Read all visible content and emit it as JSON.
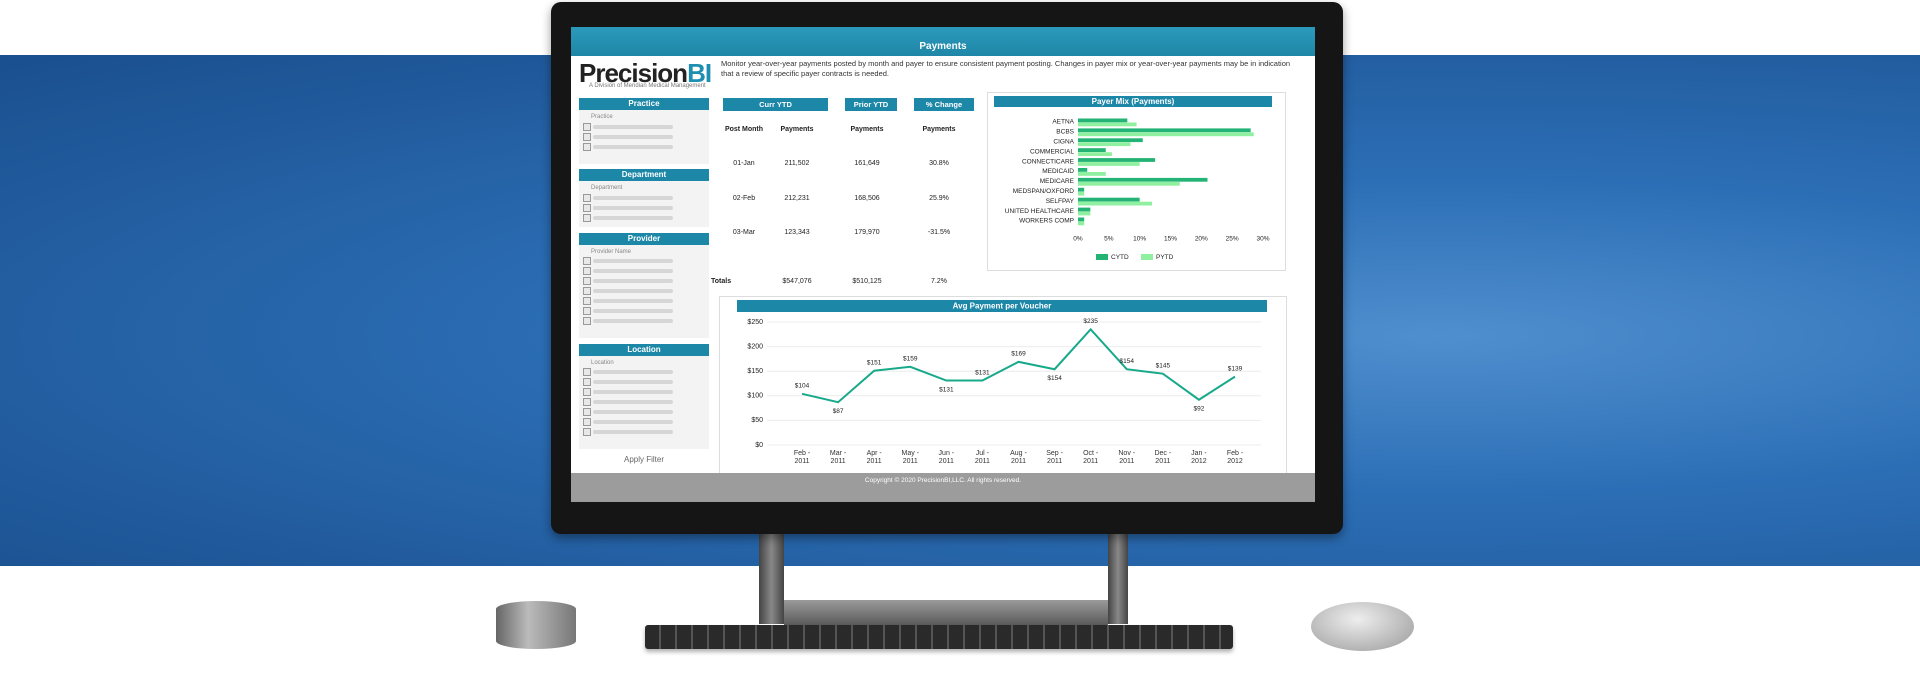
{
  "header": {
    "title": "Payments"
  },
  "logo": {
    "name_main": "Precision",
    "name_accent": "BI",
    "tagline": "A Division of Meridian Medical Management"
  },
  "description": "Monitor year-over-year payments posted by month and payer to ensure consistent payment posting.  Changes in payer mix or year-over-year payments may be in indication that a review of specific payer contracts is needed.",
  "filters": [
    {
      "title": "Practice",
      "placeholder": "Practice"
    },
    {
      "title": "Department",
      "placeholder": "Department"
    },
    {
      "title": "Provider",
      "placeholder": "Provider Name"
    },
    {
      "title": "Location",
      "placeholder": "Location"
    }
  ],
  "apply_button": "Apply Filter",
  "table": {
    "group_headers": [
      "Curr YTD",
      "Prior YTD",
      "% Change"
    ],
    "columns": [
      "Post Month",
      "Payments",
      "Payments",
      "Payments"
    ],
    "rows": [
      [
        "01-Jan",
        "211,502",
        "161,649",
        "30.8%"
      ],
      [
        "02-Feb",
        "212,231",
        "168,506",
        "25.9%"
      ],
      [
        "03-Mar",
        "123,343",
        "179,970",
        "-31.5%"
      ]
    ],
    "totals": [
      "Totals",
      "$547,076",
      "$510,125",
      "7.2%"
    ]
  },
  "footer": "Copyright © 2020 PrecisionBI,LLC.  All rights reserved.",
  "chart_data": [
    {
      "type": "hbar",
      "title": "Payer Mix (Payments)",
      "categories": [
        "AETNA",
        "BCBS",
        "CIGNA",
        "COMMERCIAL",
        "CONNECTICARE",
        "MEDICAID",
        "MEDICARE",
        "MEDSPAN/OXFORD",
        "SELFPAY",
        "UNITED HEALTHCARE",
        "WORKERS COMP"
      ],
      "series": [
        {
          "name": "CYTD",
          "color": "#23b374",
          "values": [
            8,
            28,
            10.5,
            4.5,
            12.5,
            1.5,
            21,
            1,
            10,
            2,
            1
          ]
        },
        {
          "name": "PYTD",
          "color": "#8ff0a0",
          "values": [
            9.5,
            28.5,
            8.5,
            5.5,
            10,
            4.5,
            16.5,
            1,
            12,
            2,
            1
          ]
        }
      ],
      "xlim": [
        0,
        30
      ],
      "xticks": [
        {
          "value": 0,
          "label": "0%"
        },
        {
          "value": 5,
          "label": "5%"
        },
        {
          "value": 10,
          "label": "10%"
        },
        {
          "value": 15,
          "label": "15%"
        },
        {
          "value": 20,
          "label": "20%"
        },
        {
          "value": 25,
          "label": "25%"
        },
        {
          "value": 30,
          "label": "30%"
        }
      ],
      "grid": false,
      "legend": "bottom"
    },
    {
      "type": "line",
      "title": "Avg Payment per Voucher",
      "categories": [
        "Feb - 2011",
        "Mar - 2011",
        "Apr - 2011",
        "May - 2011",
        "Jun - 2011",
        "Jul - 2011",
        "Aug - 2011",
        "Sep - 2011",
        "Oct - 2011",
        "Nov - 2011",
        "Dec - 2011",
        "Jan - 2012",
        "Feb - 2012"
      ],
      "values": [
        104,
        87,
        151,
        159,
        131,
        131,
        169,
        154,
        235,
        154,
        145,
        92,
        139
      ],
      "value_labels": [
        "$104",
        "$87",
        "$151",
        "$159",
        "$131",
        "$131",
        "$169",
        "$154",
        "$235",
        "$154",
        "$145",
        "$92",
        "$139"
      ],
      "color": "#17a98a",
      "ylim": [
        0,
        250
      ],
      "yticks": [
        {
          "value": 0,
          "label": "$0"
        },
        {
          "value": 50,
          "label": "$50"
        },
        {
          "value": 100,
          "label": "$100"
        },
        {
          "value": 150,
          "label": "$150"
        },
        {
          "value": 200,
          "label": "$200"
        },
        {
          "value": 250,
          "label": "$250"
        }
      ],
      "grid": true
    }
  ]
}
